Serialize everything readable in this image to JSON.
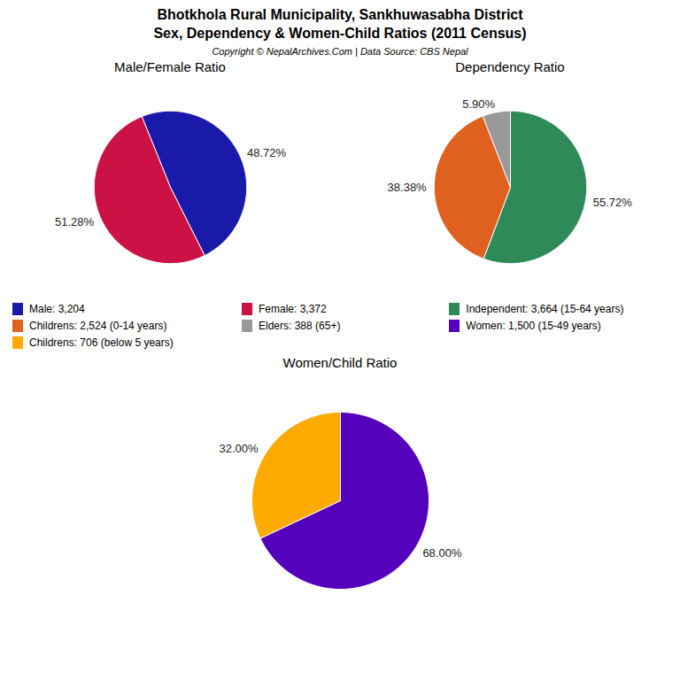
{
  "title": "Bhotkhola Rural Municipality, Sankhuwasabha District",
  "subtitle": "Sex, Dependency & Women-Child Ratios (2011 Census)",
  "annotations": [
    "Copyright © NepalArchives.Com | Data Source: CBS Nepal"
  ],
  "chart_data": [
    {
      "type": "pie",
      "title": "Male/Female Ratio",
      "categories": [
        "Male: 3,204",
        "Female: 3,372"
      ],
      "values": [
        48.72,
        51.28
      ],
      "value_labels": [
        "48.72%",
        "51.28%"
      ],
      "colors": [
        "#1a1aaa",
        "#cc1144"
      ],
      "data_labels": true,
      "legend": "center"
    },
    {
      "type": "pie",
      "title": "Dependency Ratio",
      "categories": [
        "Independent: 3,664 (15-64 years)",
        "Childrens: 2,524 (0-14 years)",
        "Elders: 388 (65+)"
      ],
      "values": [
        55.72,
        38.38,
        5.9
      ],
      "value_labels": [
        "55.72%",
        "38.38%",
        "5.90%"
      ],
      "colors": [
        "#2e8b57",
        "#e06020",
        "#999999"
      ],
      "data_labels": true,
      "legend": "center"
    },
    {
      "type": "pie",
      "title": "Women/Child Ratio",
      "categories": [
        "Women: 1,500 (15-49 years)",
        "Childrens: 706 (below 5 years)"
      ],
      "values": [
        68.0,
        32.0
      ],
      "value_labels": [
        "68.00%",
        "32.00%"
      ],
      "colors": [
        "#5500bb",
        "#ffaa00"
      ],
      "data_labels": true,
      "legend": "center"
    }
  ]
}
